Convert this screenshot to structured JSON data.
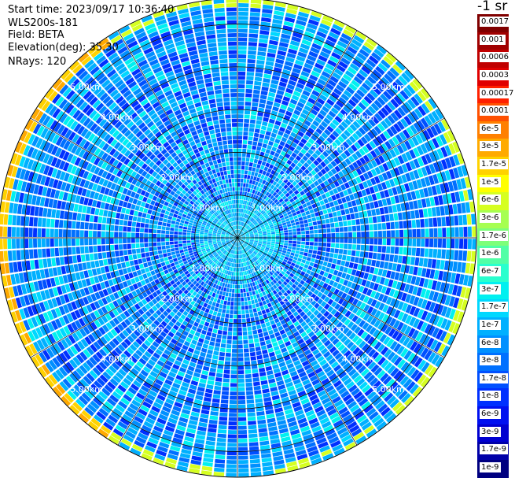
{
  "header": {
    "start_time": "Start time: 2023/09/17 10:36:40",
    "instrument": "WLS200s-181",
    "field": "Field: BETA",
    "elevation": "Elevation(deg): 35.30",
    "nrays": "NRays: 120"
  },
  "colorbar": {
    "unit": "-1 sr",
    "levels": [
      {
        "label": "0.0017",
        "color": "#800000"
      },
      {
        "label": "0.001",
        "color": "#a00000"
      },
      {
        "label": "0.0006",
        "color": "#c00000"
      },
      {
        "label": "0.0003",
        "color": "#e00000"
      },
      {
        "label": "0.00017",
        "color": "#ff2000"
      },
      {
        "label": "0.0001",
        "color": "#ff5000"
      },
      {
        "label": "6e-5",
        "color": "#ff8000"
      },
      {
        "label": "3e-5",
        "color": "#ffaa00"
      },
      {
        "label": "1.7e-5",
        "color": "#ffd200"
      },
      {
        "label": "1e-5",
        "color": "#ffff00"
      },
      {
        "label": "6e-6",
        "color": "#d6ff21"
      },
      {
        "label": "3e-6",
        "color": "#a6ff51"
      },
      {
        "label": "1.7e-6",
        "color": "#7dff7a"
      },
      {
        "label": "1e-6",
        "color": "#51ffa6"
      },
      {
        "label": "6e-7",
        "color": "#29ffce"
      },
      {
        "label": "3e-7",
        "color": "#00f0f0"
      },
      {
        "label": "1.7e-7",
        "color": "#00d8ff"
      },
      {
        "label": "1e-7",
        "color": "#00b0ff"
      },
      {
        "label": "6e-8",
        "color": "#0090ff"
      },
      {
        "label": "3e-8",
        "color": "#0070ff"
      },
      {
        "label": "1.7e-8",
        "color": "#0050ff"
      },
      {
        "label": "1e-8",
        "color": "#0030ff"
      },
      {
        "label": "6e-9",
        "color": "#0010f0"
      },
      {
        "label": "3e-9",
        "color": "#0000d0"
      },
      {
        "label": "1.7e-9",
        "color": "#0000a8"
      },
      {
        "label": "1e-9",
        "color": "#000080"
      }
    ]
  },
  "plot": {
    "range_rings": [
      "1.00km",
      "2.00km",
      "3.00km",
      "4.00km",
      "5.00km"
    ],
    "max_range_km": 5.6,
    "rays": 120,
    "gates": 56
  }
}
